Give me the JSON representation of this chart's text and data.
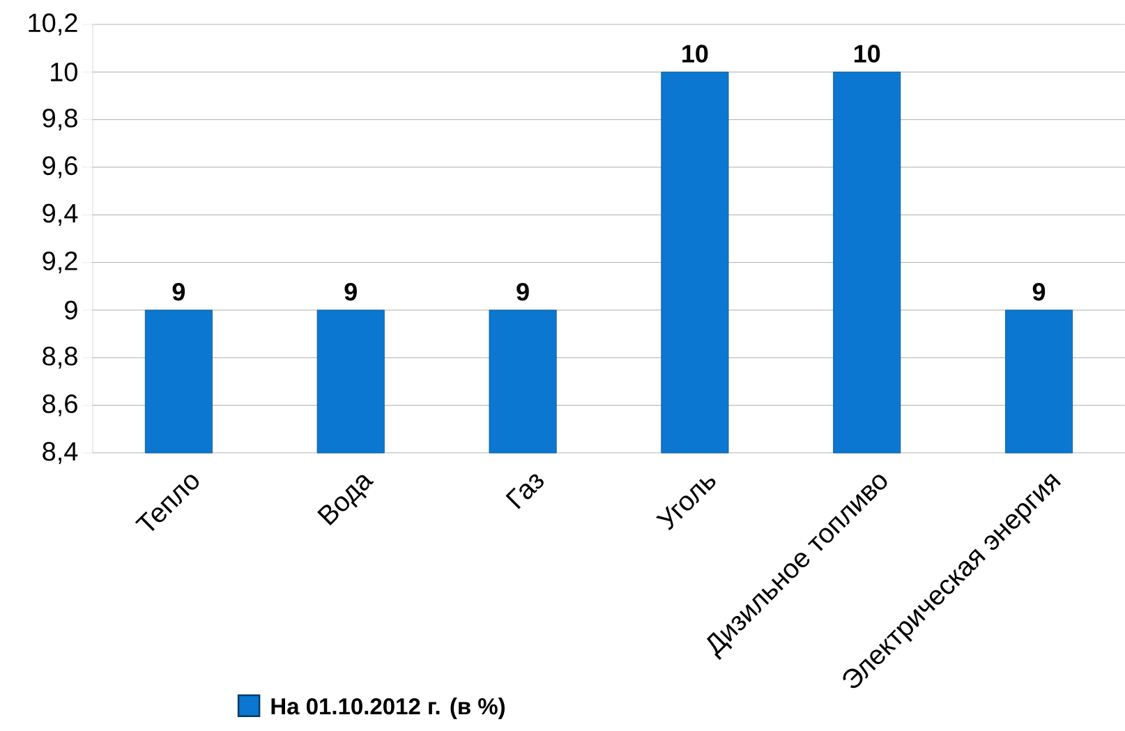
{
  "chart_data": {
    "type": "bar",
    "categories": [
      "Тепло",
      "Вода",
      "Газ",
      "Уголь",
      "Дизильное  топливо",
      "Электрическая энергия"
    ],
    "series": [
      {
        "name": "На 01.10.2012 г. (в %)",
        "color": "#0b77d0",
        "values": [
          9,
          9,
          9,
          10,
          10,
          9
        ]
      }
    ],
    "ylim": [
      8.4,
      10.2
    ],
    "yticks": [
      {
        "value": 8.4,
        "label": "8,4"
      },
      {
        "value": 8.6,
        "label": "8,6"
      },
      {
        "value": 8.8,
        "label": "8,8"
      },
      9,
      {
        "value": 9.2,
        "label": "9,2"
      },
      {
        "value": 9.4,
        "label": "9,4"
      },
      {
        "value": 9.6,
        "label": "9,6"
      },
      {
        "value": 9.8,
        "label": "9,8"
      },
      10,
      {
        "value": 10.2,
        "label": "10,2"
      }
    ],
    "grid": "y",
    "data_labels": true,
    "legend": "bottom"
  }
}
